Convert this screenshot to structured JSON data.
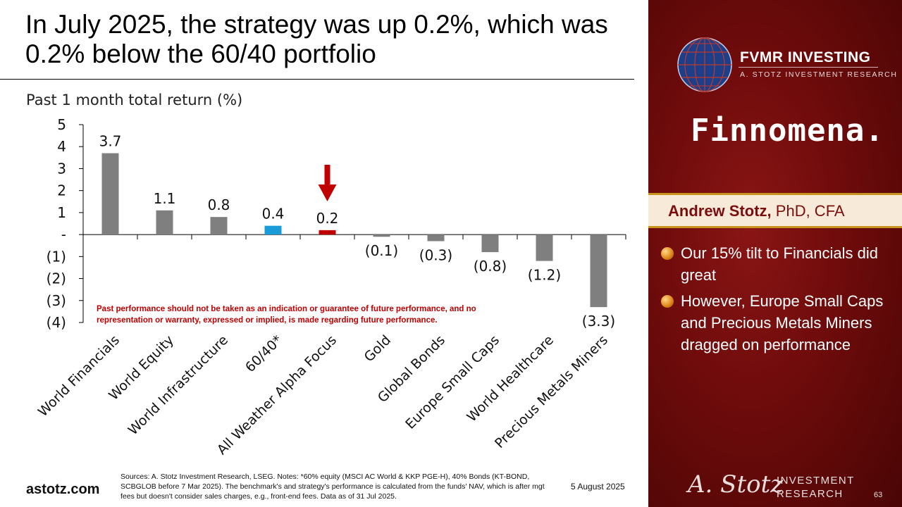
{
  "header": {
    "title": "In July 2025, the strategy was up 0.2%, which was 0.2% below the 60/40 portfolio"
  },
  "chart_data": {
    "type": "bar",
    "title": "Past 1 month total return (%)",
    "categories": [
      "World Financials",
      "World Equity",
      "World Infrastructure",
      "60/40*",
      "All Weather Alpha Focus",
      "Gold",
      "Global Bonds",
      "Europe Small Caps",
      "World Healthcare",
      "Precious Metals Miners"
    ],
    "values": [
      3.7,
      1.1,
      0.8,
      0.4,
      0.2,
      -0.1,
      -0.3,
      -0.8,
      -1.2,
      -3.3
    ],
    "data_labels": [
      "3.7",
      "1.1",
      "0.8",
      "0.4",
      "0.2",
      "(0.1)",
      "(0.3)",
      "(0.8)",
      "(1.2)",
      "(3.3)"
    ],
    "bar_colors": [
      "#7f7f7f",
      "#7f7f7f",
      "#7f7f7f",
      "#1a9cd8",
      "#c00000",
      "#7f7f7f",
      "#7f7f7f",
      "#7f7f7f",
      "#7f7f7f",
      "#7f7f7f"
    ],
    "ylim": [
      -4,
      5
    ],
    "yticks": [
      5,
      4,
      3,
      2,
      1,
      0,
      -1,
      -2,
      -3,
      -4
    ],
    "ytick_labels": [
      "5",
      "4",
      "3",
      "2",
      "1",
      "-",
      "(1)",
      "(2)",
      "(3)",
      "(4)"
    ],
    "highlight_arrow_category": "All Weather Alpha Focus",
    "arrow_color": "#c00000",
    "grid": false,
    "legend": "none"
  },
  "disclaimer": "Past performance should not be taken as an indication or guarantee of future performance, and no representation or warranty, expressed or implied, is made regarding future performance.",
  "footer": {
    "site": "astotz.com",
    "sources": "Sources: A. Stotz Investment Research, LSEG. Notes: *60% equity (MSCI AC World & KKP PGE-H), 40% Bonds (KT-BOND, SCBGLOB before 7 Mar 2025). The benchmark's and strategy's performance is calculated from the funds' NAV, which is after mgt fees but doesn't consider sales charges, e.g., front-end fees. Data as of 31 Jul 2025.",
    "date": "5 August 2025",
    "page": "63"
  },
  "sidebar": {
    "brand_title": "FVMR INVESTING",
    "brand_subtitle": "A. STOTZ INVESTMENT RESEARCH",
    "partner": "Finnomena.",
    "presenter_name": "Andrew Stotz,",
    "presenter_credentials": " PhD, CFA",
    "bullets": [
      "Our 15% tilt to Financials did great",
      "However, Europe Small Caps and Precious Metals Miners dragged on performance"
    ],
    "logo_signature": "A. Stotz",
    "logo_text_line1": "INVESTMENT",
    "logo_text_line2": "RESEARCH",
    "accent_color": "#7a0d0d"
  }
}
